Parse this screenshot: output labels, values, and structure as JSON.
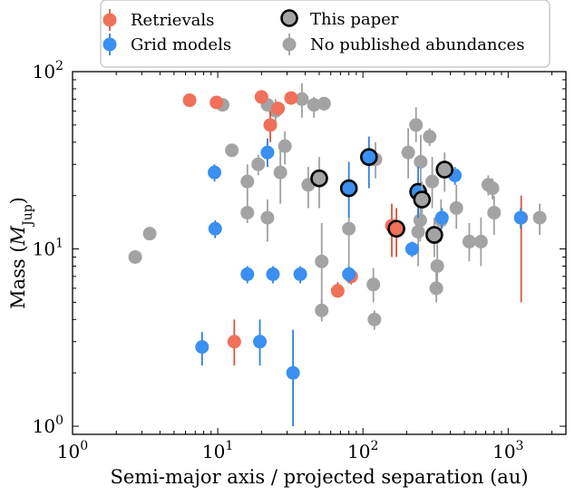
{
  "chart_data": {
    "type": "scatter",
    "title": "",
    "xlabel": "Semi-major axis / projected separation (au)",
    "ylabel_main": "Mass (",
    "ylabel_symbol": "M",
    "ylabel_sub": "Jup",
    "ylabel_close": ")",
    "x_scale": "log",
    "y_scale": "log",
    "xlim": [
      1,
      2500
    ],
    "ylim": [
      0.9,
      100
    ],
    "x_ticks": [
      {
        "value": 1,
        "base": "10",
        "exp": "0"
      },
      {
        "value": 10,
        "base": "10",
        "exp": "1"
      },
      {
        "value": 100,
        "base": "10",
        "exp": "2"
      },
      {
        "value": 1000,
        "base": "10",
        "exp": "3"
      }
    ],
    "y_ticks": [
      {
        "value": 1,
        "base": "10",
        "exp": "0"
      },
      {
        "value": 10,
        "base": "10",
        "exp": "1"
      },
      {
        "value": 100,
        "base": "10",
        "exp": "2"
      }
    ],
    "grid": false,
    "legend_position": "top-center",
    "colors": {
      "retrievals": "#f0705a",
      "grid_models": "#3a8ff0",
      "no_abundances": "#a3a3a3",
      "this_paper_edge": "#000000",
      "error_retrievals": "#d9553f",
      "error_grid": "#2f7fe0",
      "error_none": "#a0a0a0"
    },
    "legend": [
      {
        "key": "retrievals",
        "label": "Retrievals"
      },
      {
        "key": "grid_models",
        "label": "Grid models"
      },
      {
        "key": "this_paper",
        "label": "This paper"
      },
      {
        "key": "no_abundances",
        "label": "No published abundances"
      }
    ],
    "series": [
      {
        "key": "no_abundances",
        "points": [
          {
            "x": 2.7,
            "y": 9,
            "ylo": 8.5,
            "yhi": 9.6
          },
          {
            "x": 3.4,
            "y": 12.2,
            "ylo": 11.4,
            "yhi": 13
          },
          {
            "x": 10.8,
            "y": 65,
            "ylo": 62,
            "yhi": 68
          },
          {
            "x": 12.5,
            "y": 36,
            "ylo": 34,
            "yhi": 38
          },
          {
            "x": 16,
            "y": 24,
            "ylo": 18,
            "yhi": 30
          },
          {
            "x": 16,
            "y": 16,
            "ylo": 14,
            "yhi": 18
          },
          {
            "x": 19,
            "y": 30,
            "ylo": 26,
            "yhi": 34
          },
          {
            "x": 22,
            "y": 65,
            "ylo": 60,
            "yhi": 70
          },
          {
            "x": 22,
            "y": 15,
            "ylo": 11,
            "yhi": 19
          },
          {
            "x": 25,
            "y": 60,
            "ylo": 50,
            "yhi": 70
          },
          {
            "x": 27,
            "y": 27,
            "ylo": 18,
            "yhi": 36
          },
          {
            "x": 29,
            "y": 38,
            "ylo": 30,
            "yhi": 46
          },
          {
            "x": 38,
            "y": 70,
            "ylo": 55,
            "yhi": 86
          },
          {
            "x": 42,
            "y": 23,
            "ylo": 17,
            "yhi": 29
          },
          {
            "x": 46,
            "y": 65,
            "ylo": 55,
            "yhi": 72
          },
          {
            "x": 52,
            "y": 8.5,
            "ylo": 4.5,
            "yhi": 14
          },
          {
            "x": 52,
            "y": 4.5,
            "ylo": 3.9,
            "yhi": 5.2
          },
          {
            "x": 54,
            "y": 66,
            "ylo": 60,
            "yhi": 72
          },
          {
            "x": 80,
            "y": 13,
            "ylo": 8,
            "yhi": 22
          },
          {
            "x": 118,
            "y": 6.3,
            "ylo": 5,
            "yhi": 7.8
          },
          {
            "x": 120,
            "y": 4,
            "ylo": 3.5,
            "yhi": 4.5
          },
          {
            "x": 122,
            "y": 32,
            "ylo": 25,
            "yhi": 40
          },
          {
            "x": 205,
            "y": 35,
            "ylo": 25,
            "yhi": 48
          },
          {
            "x": 232,
            "y": 50,
            "ylo": 40,
            "yhi": 63
          },
          {
            "x": 240,
            "y": 12.5,
            "ylo": 8,
            "yhi": 19
          },
          {
            "x": 248,
            "y": 14.5,
            "ylo": 11,
            "yhi": 19
          },
          {
            "x": 250,
            "y": 31,
            "ylo": 22,
            "yhi": 44
          },
          {
            "x": 288,
            "y": 43,
            "ylo": 38,
            "yhi": 48
          },
          {
            "x": 300,
            "y": 24,
            "ylo": 17,
            "yhi": 33
          },
          {
            "x": 320,
            "y": 6,
            "ylo": 5,
            "yhi": 7.5
          },
          {
            "x": 325,
            "y": 8,
            "ylo": 6,
            "yhi": 11
          },
          {
            "x": 345,
            "y": 14.5,
            "ylo": 11,
            "yhi": 19
          },
          {
            "x": 440,
            "y": 17,
            "ylo": 13,
            "yhi": 23
          },
          {
            "x": 540,
            "y": 11,
            "ylo": 8.5,
            "yhi": 14
          },
          {
            "x": 650,
            "y": 11,
            "ylo": 8,
            "yhi": 15
          },
          {
            "x": 730,
            "y": 23,
            "ylo": 20,
            "yhi": 26
          },
          {
            "x": 780,
            "y": 22,
            "ylo": 19,
            "yhi": 25
          },
          {
            "x": 800,
            "y": 16,
            "ylo": 12,
            "yhi": 20
          },
          {
            "x": 1650,
            "y": 15,
            "ylo": 12,
            "yhi": 18
          }
        ]
      },
      {
        "key": "retrievals",
        "points": [
          {
            "x": 6.4,
            "y": 69,
            "ylo": 65,
            "yhi": 73
          },
          {
            "x": 9.8,
            "y": 67,
            "ylo": 63,
            "yhi": 71
          },
          {
            "x": 13,
            "y": 3,
            "ylo": 2.2,
            "yhi": 4
          },
          {
            "x": 20,
            "y": 72,
            "ylo": 68,
            "yhi": 76
          },
          {
            "x": 23,
            "y": 50,
            "ylo": 40,
            "yhi": 60
          },
          {
            "x": 26,
            "y": 62,
            "ylo": 57,
            "yhi": 67
          },
          {
            "x": 32,
            "y": 71,
            "ylo": 67,
            "yhi": 75
          },
          {
            "x": 67,
            "y": 5.8,
            "ylo": 5.3,
            "yhi": 6.5
          },
          {
            "x": 83,
            "y": 7,
            "ylo": 6.3,
            "yhi": 7.8
          },
          {
            "x": 158,
            "y": 13.5,
            "ylo": 9,
            "yhi": 18
          },
          {
            "x": 1230,
            "y": 15,
            "ylo": 5,
            "yhi": 20
          }
        ]
      },
      {
        "key": "grid_models",
        "points": [
          {
            "x": 7.8,
            "y": 2.8,
            "ylo": 2.2,
            "yhi": 3.4
          },
          {
            "x": 9.5,
            "y": 27,
            "ylo": 24,
            "yhi": 30
          },
          {
            "x": 9.6,
            "y": 13,
            "ylo": 11.5,
            "yhi": 14.5
          },
          {
            "x": 16,
            "y": 7.2,
            "ylo": 6.4,
            "yhi": 8
          },
          {
            "x": 19.5,
            "y": 3,
            "ylo": 2.2,
            "yhi": 4
          },
          {
            "x": 22,
            "y": 35,
            "ylo": 29,
            "yhi": 42
          },
          {
            "x": 24,
            "y": 7.2,
            "ylo": 6.4,
            "yhi": 8
          },
          {
            "x": 33,
            "y": 2,
            "ylo": 1.0,
            "yhi": 3.5
          },
          {
            "x": 37,
            "y": 7.2,
            "ylo": 6.4,
            "yhi": 8
          },
          {
            "x": 80,
            "y": 7.2,
            "ylo": 6.4,
            "yhi": 8
          },
          {
            "x": 218,
            "y": 10,
            "ylo": 9,
            "yhi": 11
          },
          {
            "x": 350,
            "y": 15,
            "ylo": 13,
            "yhi": 17
          },
          {
            "x": 430,
            "y": 26,
            "ylo": 23,
            "yhi": 29
          },
          {
            "x": 1220,
            "y": 15,
            "ylo": 13,
            "yhi": 17
          }
        ]
      },
      {
        "key": "this_paper",
        "points": [
          {
            "x": 50,
            "y": 25,
            "ylo": 17,
            "yhi": 33,
            "fill": "no_abundances",
            "ebar": "error_none"
          },
          {
            "x": 80,
            "y": 22,
            "ylo": 15,
            "yhi": 31,
            "fill": "grid_models",
            "ebar": "error_grid"
          },
          {
            "x": 110,
            "y": 33,
            "ylo": 22,
            "yhi": 43,
            "fill": "grid_models",
            "ebar": "error_grid"
          },
          {
            "x": 170,
            "y": 13,
            "ylo": 9,
            "yhi": 17,
            "fill": "retrievals",
            "ebar": "error_retrievals"
          },
          {
            "x": 240,
            "y": 21,
            "ylo": 15,
            "yhi": 29,
            "fill": "grid_models",
            "ebar": "error_grid"
          },
          {
            "x": 255,
            "y": 19,
            "ylo": 14,
            "yhi": 24,
            "fill": "no_abundances",
            "ebar": "error_none"
          },
          {
            "x": 310,
            "y": 12,
            "ylo": 9,
            "yhi": 15,
            "fill": "no_abundances",
            "ebar": "error_none"
          },
          {
            "x": 365,
            "y": 28,
            "ylo": 21,
            "yhi": 35,
            "fill": "no_abundances",
            "ebar": "error_none"
          }
        ]
      }
    ]
  }
}
